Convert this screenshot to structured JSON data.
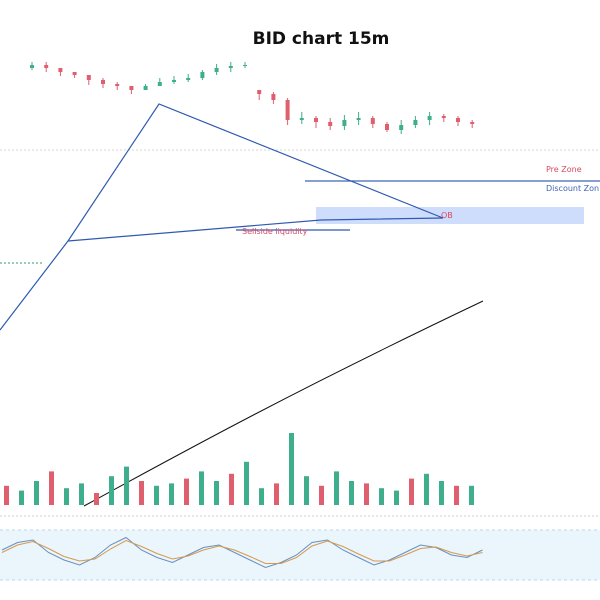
{
  "chart_data": {
    "type": "candlestick",
    "title": "BID chart 15m",
    "annotations": {
      "pre_zone": "Pre Zone",
      "discount_zone": "Discount Zon",
      "order_block": "OB",
      "sellside_liquidity": "Sellside liquidity"
    },
    "price_candles": [
      [
        262,
        265,
        260,
        268
      ],
      [
        265,
        262,
        258,
        268
      ],
      [
        262,
        258,
        254,
        262
      ],
      [
        258,
        255,
        252,
        258
      ],
      [
        255,
        250,
        245,
        255
      ],
      [
        250,
        246,
        242,
        252
      ],
      [
        246,
        244,
        240,
        248
      ],
      [
        244,
        240,
        236,
        242
      ],
      [
        240,
        244,
        240,
        246
      ],
      [
        244,
        248,
        244,
        252
      ],
      [
        248,
        250,
        246,
        254
      ],
      [
        250,
        252,
        248,
        256
      ],
      [
        252,
        258,
        250,
        260
      ],
      [
        258,
        262,
        255,
        266
      ],
      [
        262,
        264,
        258,
        268
      ],
      [
        264,
        265,
        262,
        268
      ],
      [
        240,
        236,
        230,
        240
      ],
      [
        236,
        230,
        226,
        238
      ],
      [
        230,
        210,
        205,
        232
      ],
      [
        210,
        212,
        206,
        218
      ],
      [
        212,
        208,
        202,
        214
      ],
      [
        208,
        204,
        200,
        212
      ],
      [
        204,
        210,
        200,
        215
      ],
      [
        210,
        212,
        205,
        218
      ],
      [
        212,
        206,
        202,
        214
      ],
      [
        206,
        200,
        198,
        208
      ],
      [
        200,
        205,
        196,
        210
      ],
      [
        205,
        210,
        202,
        214
      ],
      [
        210,
        214,
        205,
        218
      ],
      [
        214,
        212,
        208,
        216
      ],
      [
        212,
        208,
        204,
        214
      ],
      [
        208,
        206,
        202,
        210
      ]
    ],
    "ob_zone_price": [
      207,
      224
    ],
    "volume": [
      8,
      6,
      10,
      14,
      7,
      9,
      5,
      12,
      16,
      10,
      8,
      9,
      11,
      14,
      10,
      13,
      18,
      7,
      9,
      30,
      12,
      8,
      14,
      10,
      9,
      7,
      6,
      11,
      13,
      10,
      8,
      8
    ],
    "stochastic": {
      "k": [
        60,
        75,
        80,
        55,
        40,
        30,
        45,
        70,
        85,
        60,
        45,
        35,
        50,
        65,
        70,
        55,
        40,
        25,
        35,
        50,
        75,
        80,
        60,
        45,
        30,
        40,
        55,
        70,
        65,
        50,
        45,
        60
      ],
      "d": [
        55,
        70,
        77,
        63,
        47,
        38,
        42,
        62,
        79,
        67,
        53,
        42,
        48,
        60,
        68,
        60,
        47,
        33,
        33,
        45,
        68,
        78,
        67,
        52,
        38,
        38,
        50,
        63,
        66,
        55,
        48,
        55
      ],
      "upper": 80,
      "lower": 20
    },
    "grid": false,
    "legend": "none"
  }
}
